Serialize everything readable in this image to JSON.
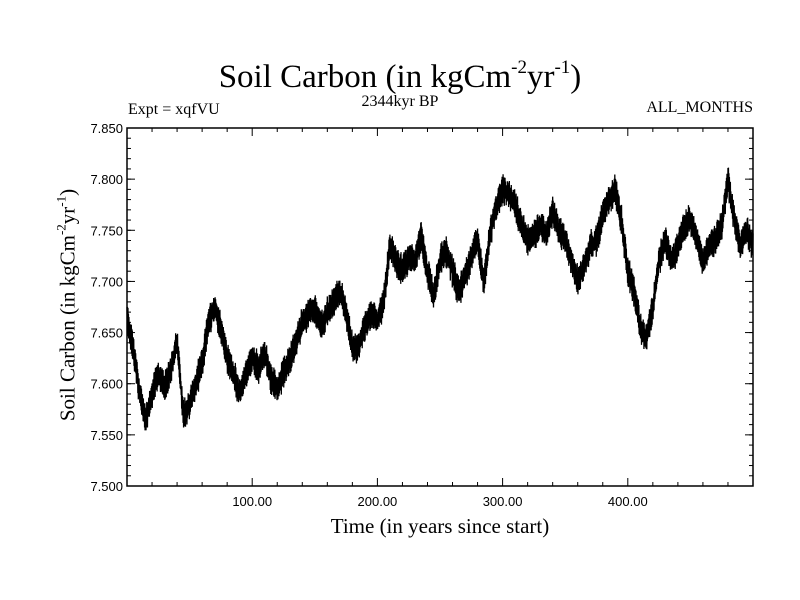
{
  "chart_data": {
    "type": "line",
    "title": {
      "main": "Soil Carbon (in kgCm",
      "exp1": "-2",
      "mid": "yr",
      "exp2": "-1",
      "end": ")"
    },
    "subtitle": "2344kyr BP",
    "left_note": "Expt = xqfVU",
    "right_note": "ALL_MONTHS",
    "xlabel": "Time (in years since start)",
    "ylabel": {
      "main": "Soil Carbon (in kgCm",
      "exp1": "-2",
      "mid": "yr",
      "exp2": "-1",
      "end": ")"
    },
    "xlim": [
      0,
      500
    ],
    "ylim": [
      7.5,
      7.85
    ],
    "x_ticks": [
      100,
      200,
      300,
      400
    ],
    "x_tick_labels": [
      "100.00",
      "200.00",
      "300.00",
      "400.00"
    ],
    "y_ticks": [
      7.5,
      7.55,
      7.6,
      7.65,
      7.7,
      7.75,
      7.8,
      7.85
    ],
    "y_tick_labels": [
      "7.500",
      "7.550",
      "7.600",
      "7.650",
      "7.700",
      "7.750",
      "7.800",
      "7.850"
    ],
    "line_color": "#000000",
    "series": [
      {
        "name": "Soil Carbon",
        "note": "approximate envelope midline; plotted trace has high-frequency oscillation of about ±0.012",
        "x": [
          0,
          5,
          10,
          15,
          20,
          25,
          30,
          35,
          40,
          45,
          50,
          55,
          60,
          65,
          70,
          75,
          80,
          85,
          90,
          95,
          100,
          105,
          110,
          115,
          120,
          125,
          130,
          135,
          140,
          145,
          150,
          155,
          160,
          165,
          170,
          175,
          180,
          185,
          190,
          195,
          200,
          205,
          210,
          215,
          220,
          225,
          230,
          235,
          240,
          245,
          250,
          255,
          260,
          265,
          270,
          275,
          280,
          285,
          290,
          295,
          300,
          305,
          310,
          315,
          320,
          325,
          330,
          335,
          340,
          345,
          350,
          355,
          360,
          365,
          370,
          375,
          380,
          385,
          390,
          395,
          400,
          405,
          410,
          415,
          420,
          425,
          430,
          435,
          440,
          445,
          450,
          455,
          460,
          465,
          470,
          475,
          480,
          485,
          490,
          495,
          500
        ],
        "values": [
          7.665,
          7.635,
          7.59,
          7.565,
          7.59,
          7.61,
          7.595,
          7.615,
          7.64,
          7.57,
          7.58,
          7.6,
          7.62,
          7.66,
          7.675,
          7.655,
          7.625,
          7.61,
          7.59,
          7.61,
          7.625,
          7.615,
          7.63,
          7.605,
          7.595,
          7.61,
          7.625,
          7.64,
          7.66,
          7.67,
          7.675,
          7.655,
          7.67,
          7.68,
          7.69,
          7.67,
          7.635,
          7.635,
          7.655,
          7.67,
          7.66,
          7.68,
          7.735,
          7.72,
          7.71,
          7.725,
          7.72,
          7.745,
          7.71,
          7.685,
          7.72,
          7.73,
          7.71,
          7.69,
          7.705,
          7.725,
          7.74,
          7.7,
          7.745,
          7.775,
          7.79,
          7.785,
          7.775,
          7.755,
          7.74,
          7.745,
          7.755,
          7.745,
          7.77,
          7.75,
          7.74,
          7.72,
          7.7,
          7.715,
          7.735,
          7.74,
          7.765,
          7.78,
          7.79,
          7.76,
          7.71,
          7.69,
          7.655,
          7.645,
          7.675,
          7.72,
          7.74,
          7.72,
          7.735,
          7.755,
          7.76,
          7.74,
          7.72,
          7.735,
          7.74,
          7.755,
          7.8,
          7.76,
          7.735,
          7.75,
          7.735
        ]
      }
    ]
  }
}
